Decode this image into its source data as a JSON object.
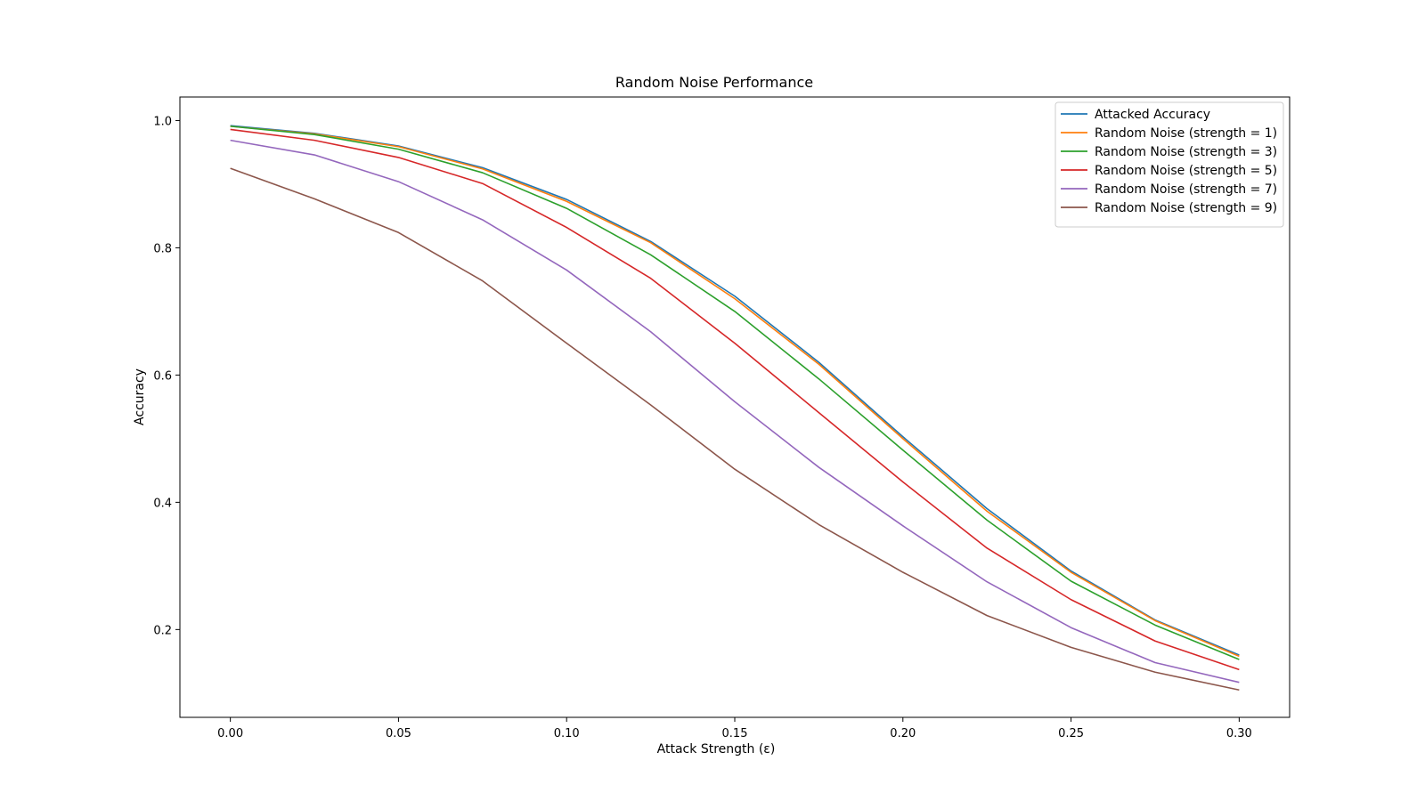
{
  "chart_data": {
    "type": "line",
    "title": "Random Noise Performance",
    "xlabel": "Attack Strength (ε)",
    "ylabel": "Accuracy",
    "x": [
      0.0,
      0.025,
      0.05,
      0.075,
      0.1,
      0.125,
      0.15,
      0.175,
      0.2,
      0.225,
      0.25,
      0.275,
      0.3
    ],
    "xlim": [
      -0.015,
      0.315
    ],
    "ylim": [
      0.062,
      1.037
    ],
    "xticks": [
      0.0,
      0.05,
      0.1,
      0.15,
      0.2,
      0.25,
      0.3
    ],
    "xtick_labels": [
      "0.00",
      "0.05",
      "0.10",
      "0.15",
      "0.20",
      "0.25",
      "0.30"
    ],
    "yticks": [
      0.2,
      0.4,
      0.6,
      0.8,
      1.0
    ],
    "ytick_labels": [
      "0.2",
      "0.4",
      "0.6",
      "0.8",
      "1.0"
    ],
    "grid": false,
    "legend_position": "top-right",
    "series": [
      {
        "name": "Attacked Accuracy",
        "color": "#1f77b4",
        "values": [
          0.992,
          0.98,
          0.96,
          0.926,
          0.876,
          0.81,
          0.724,
          0.62,
          0.503,
          0.39,
          0.292,
          0.215,
          0.16
        ]
      },
      {
        "name": "Random Noise (strength = 1)",
        "color": "#ff7f0e",
        "values": [
          0.991,
          0.979,
          0.959,
          0.924,
          0.873,
          0.808,
          0.72,
          0.617,
          0.5,
          0.386,
          0.29,
          0.214,
          0.158
        ]
      },
      {
        "name": "Random Noise (strength = 3)",
        "color": "#2ca02c",
        "values": [
          0.991,
          0.978,
          0.955,
          0.918,
          0.862,
          0.789,
          0.7,
          0.594,
          0.482,
          0.372,
          0.276,
          0.207,
          0.153
        ]
      },
      {
        "name": "Random Noise (strength = 5)",
        "color": "#d62728",
        "values": [
          0.986,
          0.969,
          0.942,
          0.901,
          0.832,
          0.752,
          0.65,
          0.541,
          0.432,
          0.328,
          0.247,
          0.182,
          0.137
        ]
      },
      {
        "name": "Random Noise (strength = 7)",
        "color": "#9467bd",
        "values": [
          0.969,
          0.946,
          0.904,
          0.844,
          0.765,
          0.668,
          0.558,
          0.455,
          0.363,
          0.275,
          0.203,
          0.148,
          0.117
        ]
      },
      {
        "name": "Random Noise (strength = 9)",
        "color": "#8c564b",
        "values": [
          0.925,
          0.877,
          0.824,
          0.748,
          0.65,
          0.553,
          0.452,
          0.365,
          0.29,
          0.222,
          0.172,
          0.133,
          0.105
        ]
      }
    ]
  }
}
